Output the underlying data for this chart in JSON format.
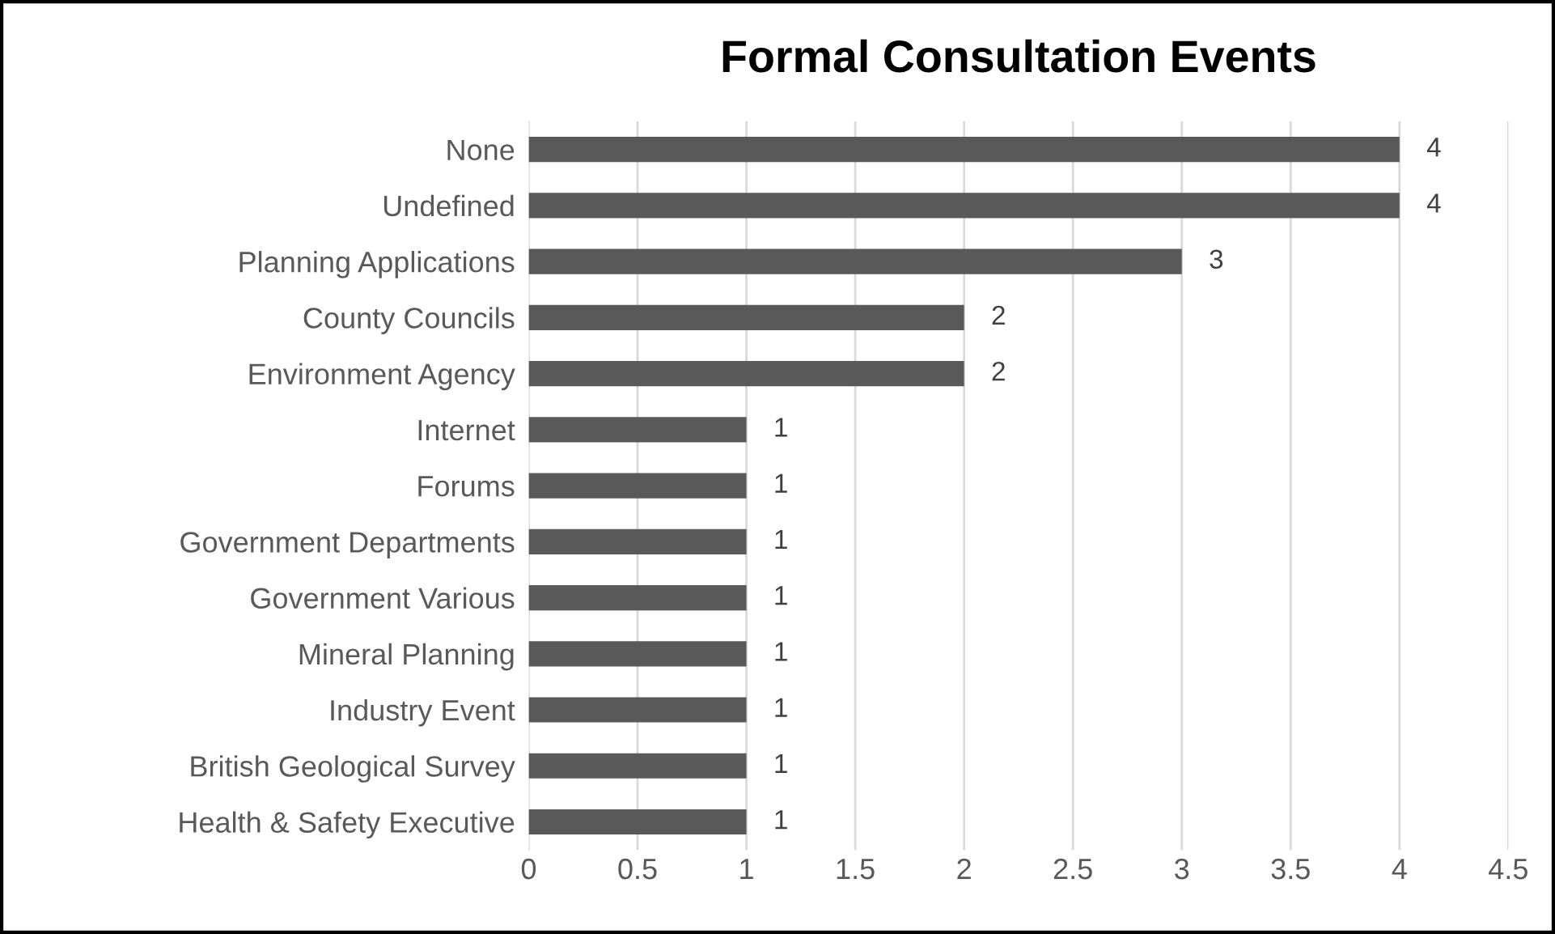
{
  "chart_data": {
    "type": "bar",
    "orientation": "horizontal",
    "title": "Formal Consultation Events",
    "categories": [
      "None",
      "Undefined",
      "Planning Applications",
      "County Councils",
      "Environment Agency",
      "Internet",
      "Forums",
      "Government Departments",
      "Government Various",
      "Mineral Planning",
      "Industry Event",
      "British Geological Survey",
      "Health & Safety Executive"
    ],
    "values": [
      4,
      4,
      3,
      2,
      2,
      1,
      1,
      1,
      1,
      1,
      1,
      1,
      1
    ],
    "color": "#595959",
    "xlim": [
      0,
      4.5
    ],
    "xticks": [
      0,
      0.5,
      1,
      1.5,
      2,
      2.5,
      3,
      3.5,
      4,
      4.5
    ],
    "grid": "x",
    "data_labels": true
  }
}
